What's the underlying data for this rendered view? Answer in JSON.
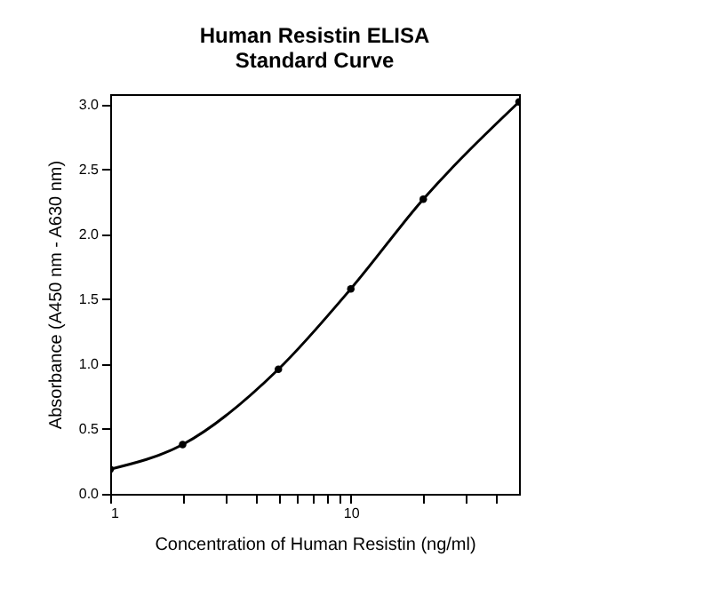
{
  "chart_data": {
    "type": "line",
    "title": [
      "Human Resistin ELISA",
      "Standard Curve"
    ],
    "xlabel": "Concentration of Human Resistin (ng/ml)",
    "ylabel": "Absorbance (A450 nm - A630 nm)",
    "x": [
      1,
      2,
      5,
      10,
      20,
      50
    ],
    "series": [
      {
        "color": "#000000",
        "values": [
          0.19,
          0.38,
          0.96,
          1.58,
          2.27,
          3.02
        ]
      }
    ],
    "log": "x",
    "marker": "circle",
    "line_style": "solid",
    "grid": false,
    "xlim": [
      1,
      50
    ],
    "xticks": [
      1,
      {
        "value": 2,
        "label": null
      },
      {
        "value": 3,
        "label": null
      },
      {
        "value": 4,
        "label": null
      },
      {
        "value": 5,
        "label": null
      },
      {
        "value": 6,
        "label": null
      },
      {
        "value": 7,
        "label": null
      },
      {
        "value": 8,
        "label": null
      },
      {
        "value": 9,
        "label": null
      },
      10,
      {
        "value": 20,
        "label": null
      },
      {
        "value": 30,
        "label": null
      },
      {
        "value": 40,
        "label": null
      }
    ],
    "ylim": [
      0,
      3.08
    ],
    "yticks": [
      {
        "value": 0,
        "label": "0.0"
      },
      {
        "value": 0.5,
        "label": "0.5"
      },
      {
        "value": 1,
        "label": "1.0"
      },
      {
        "value": 1.5,
        "label": "1.5"
      },
      {
        "value": 2,
        "label": "2.0"
      },
      {
        "value": 2.5,
        "label": "2.5"
      },
      {
        "value": 3,
        "label": "3.0"
      }
    ]
  }
}
